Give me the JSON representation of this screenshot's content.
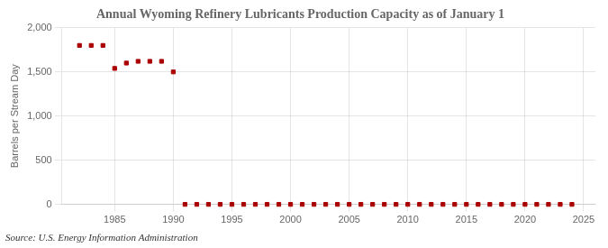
{
  "chart_data": {
    "type": "scatter",
    "title": "Annual Wyoming Refinery Lubricants Production Capacity as of January 1",
    "ylabel": "Barrels per Stream Day",
    "annotations": [
      "Source: U.S. Energy Information Administration"
    ],
    "x": [
      1982,
      1983,
      1984,
      1985,
      1986,
      1987,
      1988,
      1989,
      1990,
      1991,
      1992,
      1993,
      1994,
      1995,
      1996,
      1997,
      1998,
      1999,
      2000,
      2001,
      2002,
      2003,
      2004,
      2005,
      2006,
      2007,
      2008,
      2009,
      2010,
      2011,
      2012,
      2013,
      2014,
      2015,
      2016,
      2017,
      2018,
      2019,
      2020,
      2021,
      2022,
      2023,
      2024
    ],
    "values": [
      1800,
      1800,
      1800,
      1540,
      1600,
      1620,
      1620,
      1620,
      1500,
      0,
      0,
      0,
      0,
      0,
      0,
      0,
      0,
      0,
      0,
      0,
      0,
      0,
      0,
      0,
      0,
      0,
      0,
      0,
      0,
      0,
      0,
      0,
      0,
      0,
      0,
      0,
      0,
      0,
      0,
      0,
      0,
      0,
      0
    ],
    "color": "#aa0000",
    "marker": "square",
    "xlim": [
      1980.5,
      2026
    ],
    "xticks": [
      1985,
      1990,
      1995,
      2000,
      2005,
      2010,
      2015,
      2020,
      2025
    ],
    "ylim": [
      0,
      2000
    ],
    "yticks": [
      0,
      500,
      {
        "value": 1000,
        "label": "1,000"
      },
      {
        "value": 1500,
        "label": "1,500"
      },
      {
        "value": 2000,
        "label": "2,000"
      }
    ],
    "grid": true
  }
}
